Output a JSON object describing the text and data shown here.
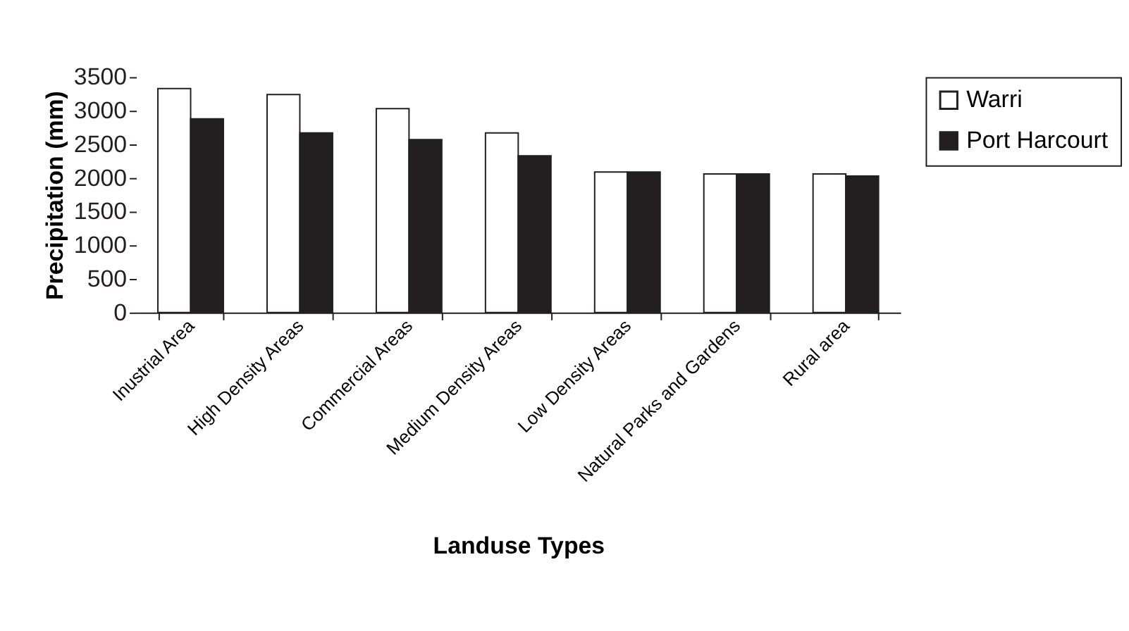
{
  "chart_data": {
    "type": "bar",
    "xlabel": "Landuse Types",
    "ylabel": "Precipitation (mm)",
    "categories": [
      "Inustrial Area",
      "High Density Areas",
      "Commercial Areas",
      "Medium Density Areas",
      "Low Density Areas",
      "Natural Parks and Gardens",
      "Rural area"
    ],
    "series": [
      {
        "name": "Warri",
        "color": "#ffffff",
        "values": [
          3330,
          3240,
          3030,
          2670,
          2090,
          2060,
          2060
        ]
      },
      {
        "name": "Port Harcourt",
        "color": "#231f20",
        "values": [
          2880,
          2670,
          2570,
          2330,
          2090,
          2060,
          2030
        ]
      }
    ],
    "ylim": [
      0,
      3500
    ],
    "yticks": [
      0,
      500,
      1000,
      1500,
      2000,
      2500,
      3000,
      3500
    ],
    "grid": false,
    "legend": "right"
  }
}
